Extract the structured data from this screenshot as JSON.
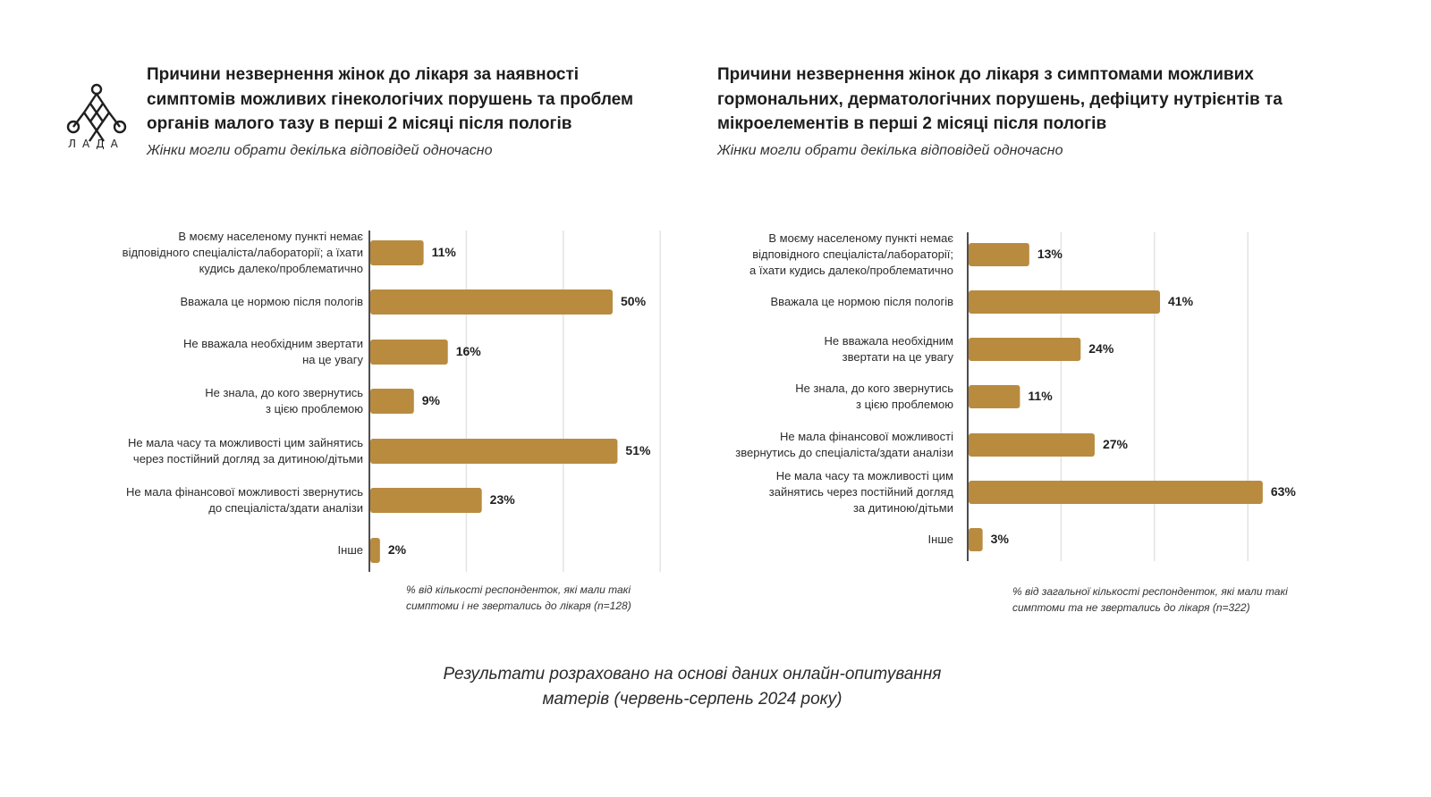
{
  "logo": {
    "icon": "lada-knot-icon",
    "text": "ЛАДА"
  },
  "left": {
    "title": "Причини незвернення жінок до лікаря за наявності симптомів можливих гінекологічих порушень та проблем органів малого тазу в перші 2 місяці після пологів",
    "subtitle": "Жінки могли обрати декілька відповідей одночасно",
    "note": "% від кількості респонденток, які мали такі симптоми і не звертались до лікаря (n=128)"
  },
  "right": {
    "title": "Причини незвернення жінок до лікаря з симптомами можливих гормональних, дерматологічних порушень, дефіциту нутрієнтів та мікроелементів в перші 2 місяці після пологів",
    "subtitle": "Жінки могли обрати декілька відповідей одночасно",
    "note": "% від загальної кількості респонденток, які мали такі симптоми та не звертались до лікаря (n=322)"
  },
  "footer": {
    "line1": "Результати розраховано на основі даних онлайн-опитування",
    "line2": "матерів (червень-серпень 2024 року)"
  },
  "colors": {
    "bar": "#b88b3f",
    "grid": "#e3e3e3",
    "axis": "#222222"
  },
  "chart_data": [
    {
      "type": "bar",
      "orientation": "horizontal",
      "categories": [
        "В моєму населеному пункті немає відповідного спеціаліста/лабораторії; а їхати кудись далеко/проблематично",
        "Вважала це нормою після пологів",
        "Не вважала необхідним звертати на це увагу",
        "Не знала, до кого звернутись з цією проблемою",
        "Не мала часу та можливості цим зайнятись через постійний догляд за дитиною/дітьми",
        "Не мала фінансової можливості звернутись до спеціаліста/здати аналізи",
        "Інше"
      ],
      "category_lines": [
        [
          "В моєму населеному пункті немає",
          "відповідного спеціаліста/лабораторії; а їхати",
          "кудись далеко/проблематично"
        ],
        [
          "Вважала це нормою після пологів"
        ],
        [
          "Не вважала необхідним звертати",
          "на це увагу"
        ],
        [
          "Не знала, до кого звернутись",
          "з цією проблемою"
        ],
        [
          "Не мала часу та можливості цим зайнятись",
          "через постійний догляд за дитиною/дітьми"
        ],
        [
          "Не мала фінансової можливості звернутись",
          "до спеціаліста/здати аналізи"
        ],
        [
          "Інше"
        ]
      ],
      "values": [
        11,
        50,
        16,
        9,
        51,
        23,
        2
      ],
      "value_labels": [
        "11%",
        "50%",
        "16%",
        "9%",
        "51%",
        "23%",
        "2%"
      ],
      "xlim": [
        0,
        60
      ],
      "grid": true
    },
    {
      "type": "bar",
      "orientation": "horizontal",
      "categories": [
        "В моєму населеному пункті немає відповідного спеціаліста/лабораторії; а їхати кудись далеко/проблематично",
        "Вважала це нормою після пологів",
        "Не вважала необхідним звертати на це увагу",
        "Не знала, до кого звернутись з цією проблемою",
        "Не мала фінансової можливості звернутись до спеціаліста/здати аналізи",
        "Не мала часу та можливості цим зайнятись через постійний догляд за дитиною/дітьми",
        "Інше"
      ],
      "category_lines": [
        [
          "В моєму населеному пункті немає",
          "відповідного спеціаліста/лабораторії;",
          "а їхати кудись далеко/проблематично"
        ],
        [
          "Вважала це нормою після пологів"
        ],
        [
          "Не вважала необхідним",
          "звертати на це увагу"
        ],
        [
          "Не знала, до кого звернутись",
          "з цією проблемою"
        ],
        [
          "Не мала фінансової можливості",
          "звернутись до спеціаліста/здати аналізи"
        ],
        [
          "Не мала часу та можливості цим",
          "зайнятись через постійний догляд",
          "за дитиною/дітьми"
        ],
        [
          "Інше"
        ]
      ],
      "values": [
        13,
        41,
        24,
        11,
        27,
        63,
        3
      ],
      "value_labels": [
        "13%",
        "41%",
        "24%",
        "11%",
        "27%",
        "63%",
        "3%"
      ],
      "xlim": [
        0,
        60
      ],
      "grid": true
    }
  ]
}
